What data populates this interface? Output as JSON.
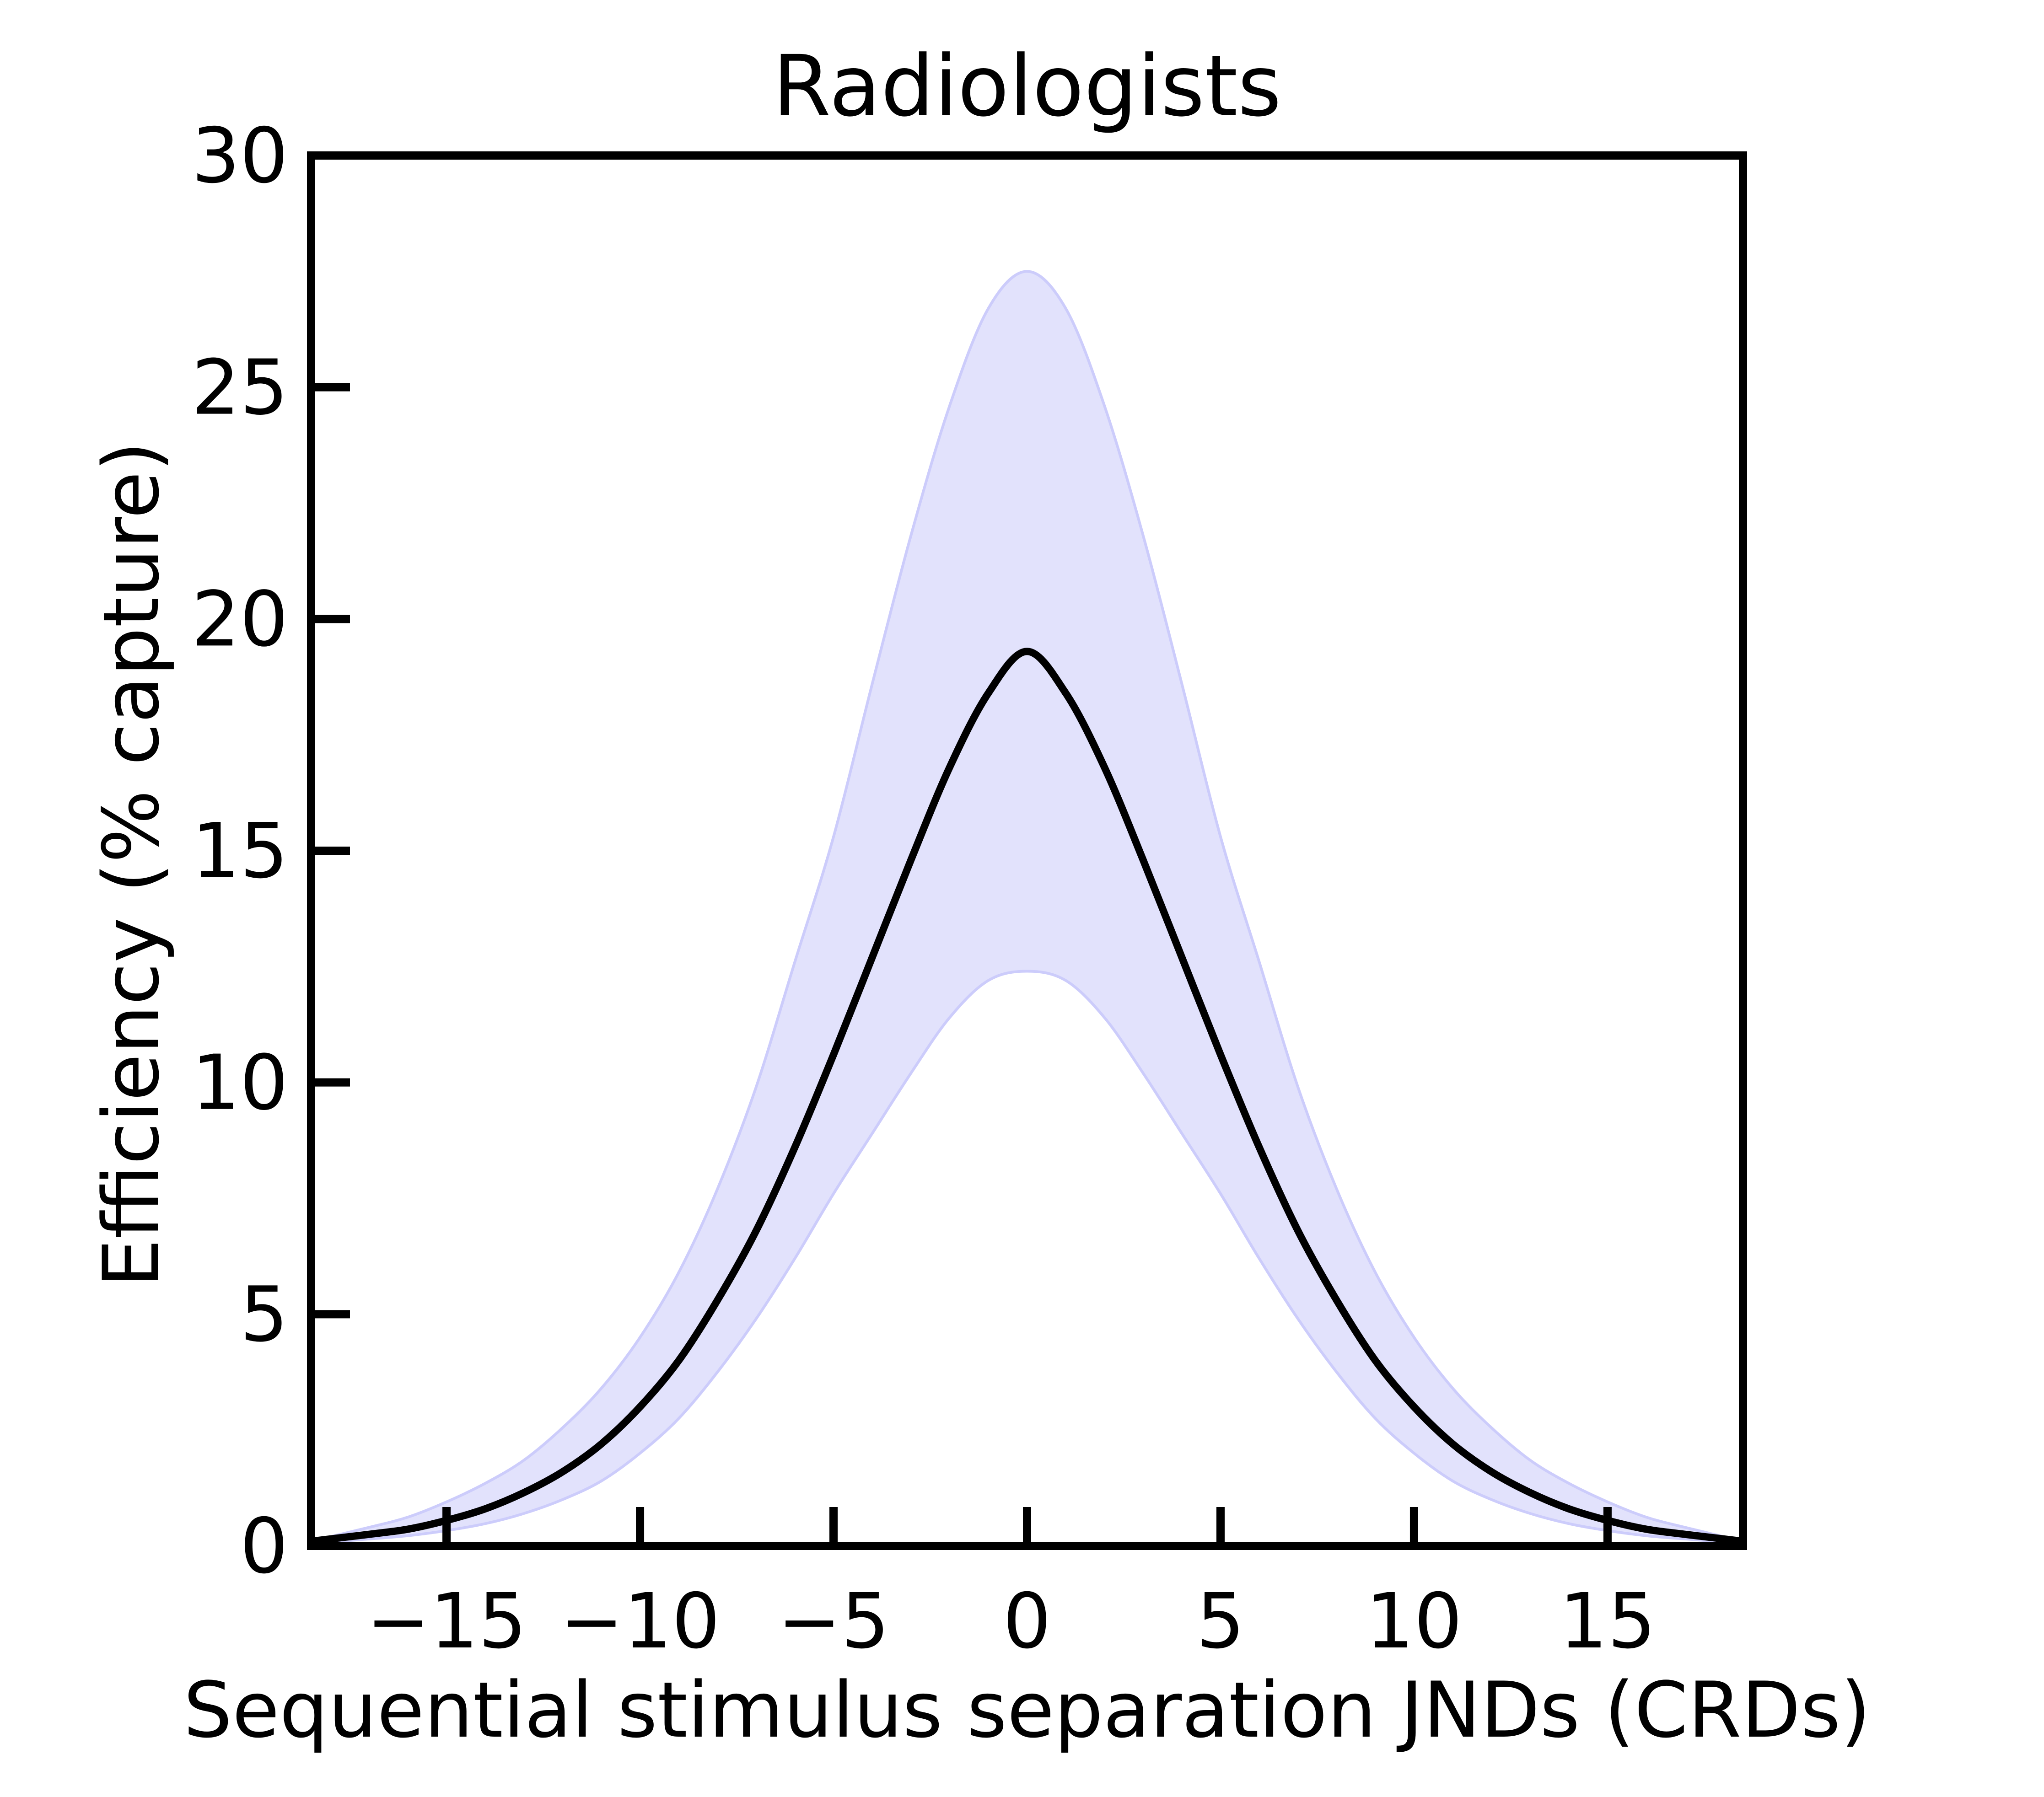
{
  "chart_data": {
    "type": "line",
    "title": "Radiologists",
    "xlabel": "Sequential stimulus separation JNDs (CRDs)",
    "ylabel": "Efficiency (% capture)",
    "xlim": [
      -18.5,
      18.5
    ],
    "ylim": [
      0,
      30
    ],
    "x_ticks": [
      -15,
      -10,
      -5,
      0,
      5,
      10,
      15
    ],
    "x_tick_labels": [
      "−15",
      "−10",
      "−5",
      "0",
      "5",
      "10",
      "15"
    ],
    "y_ticks": [
      0,
      5,
      10,
      15,
      20,
      25,
      30
    ],
    "y_tick_labels": [
      "0",
      "5",
      "10",
      "15",
      "20",
      "25",
      "30"
    ],
    "grid": false,
    "legend": false,
    "colors": {
      "line": "#000000",
      "band_fill": "#e2e2fc",
      "band_edge": "#ccccfb",
      "axes": "#000000"
    },
    "x": [
      -18.5,
      -17,
      -16,
      -15,
      -14,
      -13,
      -12,
      -11,
      -10,
      -9,
      -8,
      -7,
      -6,
      -5,
      -4,
      -3,
      -2,
      -1,
      0,
      1,
      2,
      3,
      4,
      5,
      6,
      7,
      8,
      9,
      10,
      11,
      12,
      13,
      14,
      15,
      16,
      17,
      18.5
    ],
    "series": [
      {
        "role": "mean",
        "values": [
          0.1,
          0.25,
          0.36,
          0.55,
          0.8,
          1.15,
          1.6,
          2.2,
          3.0,
          4.0,
          5.3,
          6.8,
          8.6,
          10.6,
          12.7,
          14.8,
          16.8,
          18.4,
          19.3,
          18.4,
          16.8,
          14.8,
          12.7,
          10.6,
          8.6,
          6.8,
          5.3,
          4.0,
          3.0,
          2.2,
          1.6,
          1.15,
          0.8,
          0.55,
          0.36,
          0.25,
          0.1
        ]
      }
    ],
    "band": {
      "upper": [
        0.1,
        0.4,
        0.62,
        0.95,
        1.35,
        1.85,
        2.55,
        3.4,
        4.5,
        5.9,
        7.7,
        9.9,
        12.6,
        15.3,
        18.6,
        21.8,
        24.6,
        26.7,
        27.5,
        26.7,
        24.6,
        21.8,
        18.6,
        15.3,
        12.6,
        9.9,
        7.7,
        5.9,
        4.5,
        3.4,
        2.55,
        1.85,
        1.35,
        0.95,
        0.62,
        0.4,
        0.1
      ],
      "lower": [
        0.05,
        0.15,
        0.22,
        0.33,
        0.48,
        0.7,
        1.0,
        1.4,
        2.0,
        2.75,
        3.75,
        4.9,
        6.2,
        7.6,
        8.9,
        10.2,
        11.4,
        12.2,
        12.4,
        12.2,
        11.4,
        10.2,
        8.9,
        7.6,
        6.2,
        4.9,
        3.75,
        2.75,
        2.0,
        1.4,
        1.0,
        0.7,
        0.48,
        0.33,
        0.22,
        0.15,
        0.05
      ]
    }
  }
}
